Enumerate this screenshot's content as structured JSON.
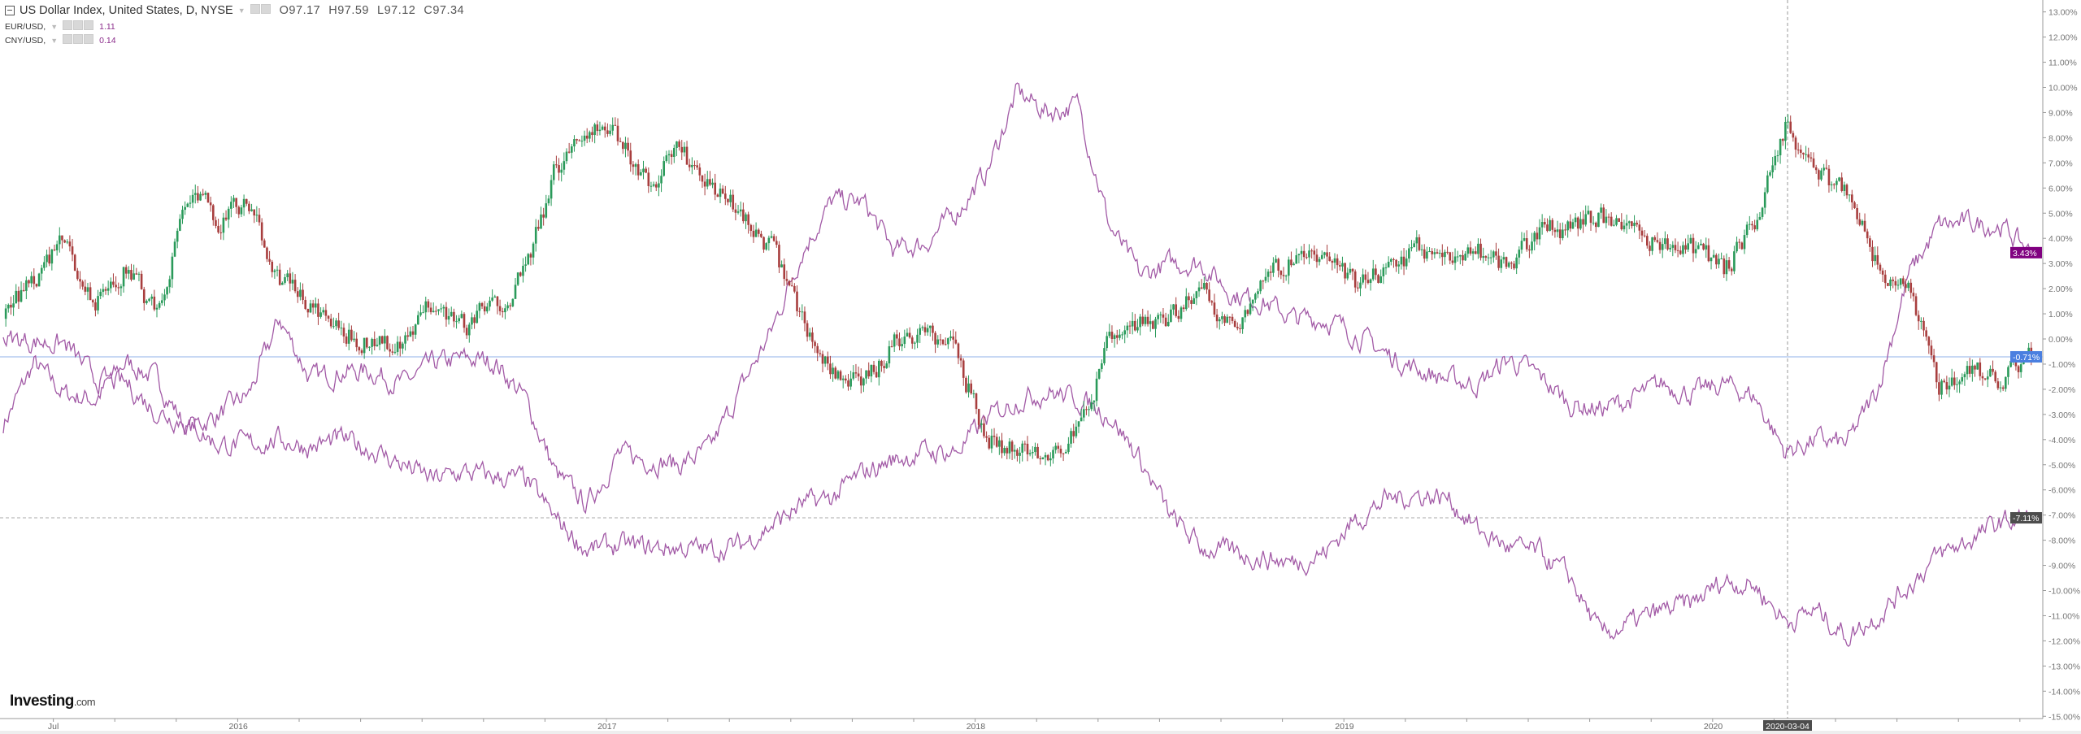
{
  "legend": {
    "main_title": "US Dollar Index, United States, D, NYSE",
    "open": "O97.17",
    "high": "H97.59",
    "low": "L97.12",
    "close": "C97.34",
    "studies": [
      {
        "name": "EUR/USD,",
        "value": "1.11"
      },
      {
        "name": "CNY/USD,",
        "value": "0.14"
      }
    ]
  },
  "logo": {
    "brand": "Investing",
    "suffix": ".com"
  },
  "chart_data": {
    "type": "line",
    "y_axis": {
      "unit": "%",
      "range": [
        -15,
        13
      ],
      "ticks": [
        "13.00%",
        "12.00%",
        "11.00%",
        "10.00%",
        "9.00%",
        "8.00%",
        "7.00%",
        "6.00%",
        "5.00%",
        "4.00%",
        "3.00%",
        "2.00%",
        "1.00%",
        "0.00%",
        "-1.00%",
        "-2.00%",
        "-3.00%",
        "-4.00%",
        "-5.00%",
        "-6.00%",
        "-7.00%",
        "-8.00%",
        "-9.00%",
        "-10.00%",
        "-11.00%",
        "-12.00%",
        "-13.00%",
        "-14.00%",
        "-15.00%"
      ]
    },
    "x_axis": {
      "labels": [
        "Jul",
        "2016",
        "2017",
        "2018",
        "2019",
        "2020"
      ],
      "crosshair_label": "2020-03-04"
    },
    "grid": false,
    "dates": [
      "2015-05",
      "2015-06",
      "2015-07",
      "2015-08",
      "2015-09",
      "2015-10",
      "2015-11",
      "2015-12",
      "2016-01",
      "2016-02",
      "2016-03",
      "2016-04",
      "2016-05",
      "2016-06",
      "2016-07",
      "2016-08",
      "2016-09",
      "2016-10",
      "2016-11",
      "2016-12",
      "2017-01",
      "2017-02",
      "2017-03",
      "2017-04",
      "2017-05",
      "2017-06",
      "2017-07",
      "2017-08",
      "2017-09",
      "2017-10",
      "2017-11",
      "2017-12",
      "2018-01",
      "2018-02",
      "2018-03",
      "2018-04",
      "2018-05",
      "2018-06",
      "2018-07",
      "2018-08",
      "2018-09",
      "2018-10",
      "2018-11",
      "2018-12",
      "2019-01",
      "2019-02",
      "2019-03",
      "2019-04",
      "2019-05",
      "2019-06",
      "2019-07",
      "2019-08",
      "2019-09",
      "2019-10",
      "2019-11",
      "2019-12",
      "2020-01",
      "2020-02",
      "2020-03",
      "2020-04",
      "2020-05",
      "2020-06",
      "2020-07",
      "2020-08",
      "2020-09",
      "2020-10",
      "2020-10"
    ],
    "series": [
      {
        "name": "US Dollar Index",
        "style": "candlestick",
        "up_color": "#2a9a5a",
        "down_color": "#a83e3e",
        "last_label": "-0.71%",
        "label_color": "#4a7fe0",
        "values": [
          0.8,
          2.5,
          3.8,
          1.3,
          2.9,
          0.8,
          5.8,
          4.8,
          5.2,
          2.4,
          1.3,
          0.2,
          0,
          -0.5,
          1.6,
          0.5,
          1.3,
          2.6,
          6.8,
          8.5,
          8.0,
          6.2,
          7.5,
          6.0,
          5.0,
          3.5,
          0.8,
          -1.3,
          -2.0,
          0.0,
          0.3,
          -0.5,
          -3.9,
          -4.5,
          -4.4,
          -3.8,
          -0.2,
          0.5,
          1.0,
          1.9,
          0.5,
          2.3,
          3.2,
          3.0,
          2.2,
          2.6,
          3.6,
          3.3,
          3.5,
          2.9,
          4.3,
          4.5,
          4.9,
          4.0,
          3.8,
          3.6,
          2.8,
          4.5,
          8.5,
          6.5,
          6.0,
          2.9,
          2.0,
          -1.8,
          -1.3,
          -1.5,
          -0.71
        ]
      },
      {
        "name": "EUR/USD",
        "style": "line",
        "color": "#a25aa6",
        "last_label": "3.43%",
        "label_color": "#800080",
        "values": [
          -3.4,
          -1.0,
          -2.2,
          -2.4,
          -0.9,
          -1.6,
          -3.6,
          -3.0,
          -2.2,
          0.8,
          -1.6,
          -1.3,
          -1.3,
          -1.8,
          -1.0,
          -0.8,
          -0.9,
          -2.4,
          -5.4,
          -6.6,
          -4.6,
          -4.8,
          -5.0,
          -4.4,
          -2.0,
          0.3,
          3.5,
          5.5,
          5.4,
          3.5,
          3.8,
          5.0,
          6.6,
          9.8,
          9.0,
          9.3,
          4.5,
          2.5,
          3.0,
          3.0,
          1.8,
          1.5,
          0.8,
          0.8,
          0.2,
          -0.6,
          -1.2,
          -1.6,
          -1.8,
          -0.8,
          -1.5,
          -2.6,
          -2.8,
          -2.4,
          -1.8,
          -2.2,
          -1.8,
          -2.3,
          -4.5,
          -4.0,
          -4.2,
          -2.0,
          2.5,
          4.5,
          4.6,
          4.5,
          3.43
        ]
      },
      {
        "name": "CNY/USD",
        "style": "line",
        "color": "#a25aa6",
        "last_label": "-7.11%",
        "label_color": "#4d4d4d",
        "values": [
          0.0,
          -0.1,
          -0.2,
          -1.6,
          -1.8,
          -2.9,
          -3.3,
          -4.2,
          -4.2,
          -4.0,
          -4.3,
          -4.0,
          -4.4,
          -5.0,
          -5.6,
          -5.3,
          -5.5,
          -5.6,
          -7.2,
          -8.4,
          -8.2,
          -8.3,
          -8.3,
          -8.4,
          -8.2,
          -7.4,
          -6.6,
          -6.3,
          -5.3,
          -4.8,
          -4.5,
          -4.5,
          -3.2,
          -2.4,
          -2.1,
          -2.4,
          -3.0,
          -4.8,
          -7.1,
          -8.3,
          -8.5,
          -8.7,
          -8.9,
          -8.5,
          -7.2,
          -6.4,
          -6.2,
          -6.3,
          -7.6,
          -8.3,
          -8.5,
          -9.5,
          -11.8,
          -11.3,
          -10.8,
          -10.5,
          -9.6,
          -9.8,
          -11.2,
          -10.8,
          -11.8,
          -11.0,
          -9.8,
          -8.6,
          -8.0,
          -7.3,
          -7.11
        ]
      }
    ]
  }
}
